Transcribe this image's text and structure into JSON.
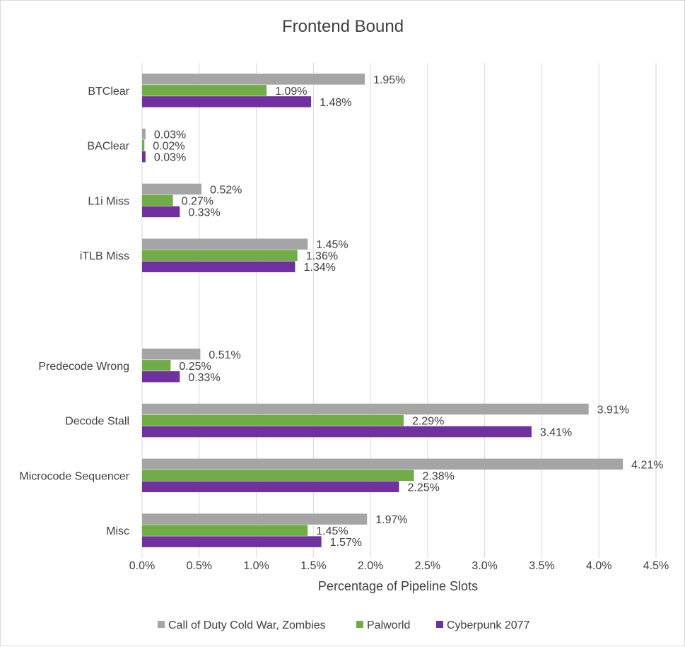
{
  "chart_data": {
    "type": "bar",
    "orientation": "horizontal",
    "title": "Frontend Bound",
    "xlabel": "Percentage of Pipeline Slots",
    "ylabel": "",
    "xlim": [
      0,
      4.5
    ],
    "x_ticks": [
      "0.0%",
      "0.5%",
      "1.0%",
      "1.5%",
      "2.0%",
      "2.5%",
      "3.0%",
      "3.5%",
      "4.0%",
      "4.5%"
    ],
    "categories": [
      "BTClear",
      "BAClear",
      "L1i Miss",
      "iTLB Miss",
      "",
      "Predecode Wrong",
      "Decode Stall",
      "Microcode Sequencer",
      "Misc"
    ],
    "series": [
      {
        "name": "Call of Duty Cold War, Zombies",
        "color": "#a5a5a5",
        "values": [
          1.95,
          0.03,
          0.52,
          1.45,
          null,
          0.51,
          3.91,
          4.21,
          1.97
        ],
        "labels": [
          "1.95%",
          "0.03%",
          "0.52%",
          "1.45%",
          "",
          "0.51%",
          "3.91%",
          "4.21%",
          "1.97%"
        ]
      },
      {
        "name": "Palworld",
        "color": "#70ad47",
        "values": [
          1.09,
          0.02,
          0.27,
          1.36,
          null,
          0.25,
          2.29,
          2.38,
          1.45
        ],
        "labels": [
          "1.09%",
          "0.02%",
          "0.27%",
          "1.36%",
          "",
          "0.25%",
          "2.29%",
          "2.38%",
          "1.45%"
        ]
      },
      {
        "name": "Cyberpunk 2077",
        "color": "#7030a0",
        "values": [
          1.48,
          0.03,
          0.33,
          1.34,
          null,
          0.33,
          3.41,
          2.25,
          1.57
        ],
        "labels": [
          "1.48%",
          "0.03%",
          "0.33%",
          "1.34%",
          "",
          "0.33%",
          "3.41%",
          "2.25%",
          "1.57%"
        ]
      }
    ],
    "grid": true,
    "legend_position": "bottom"
  }
}
